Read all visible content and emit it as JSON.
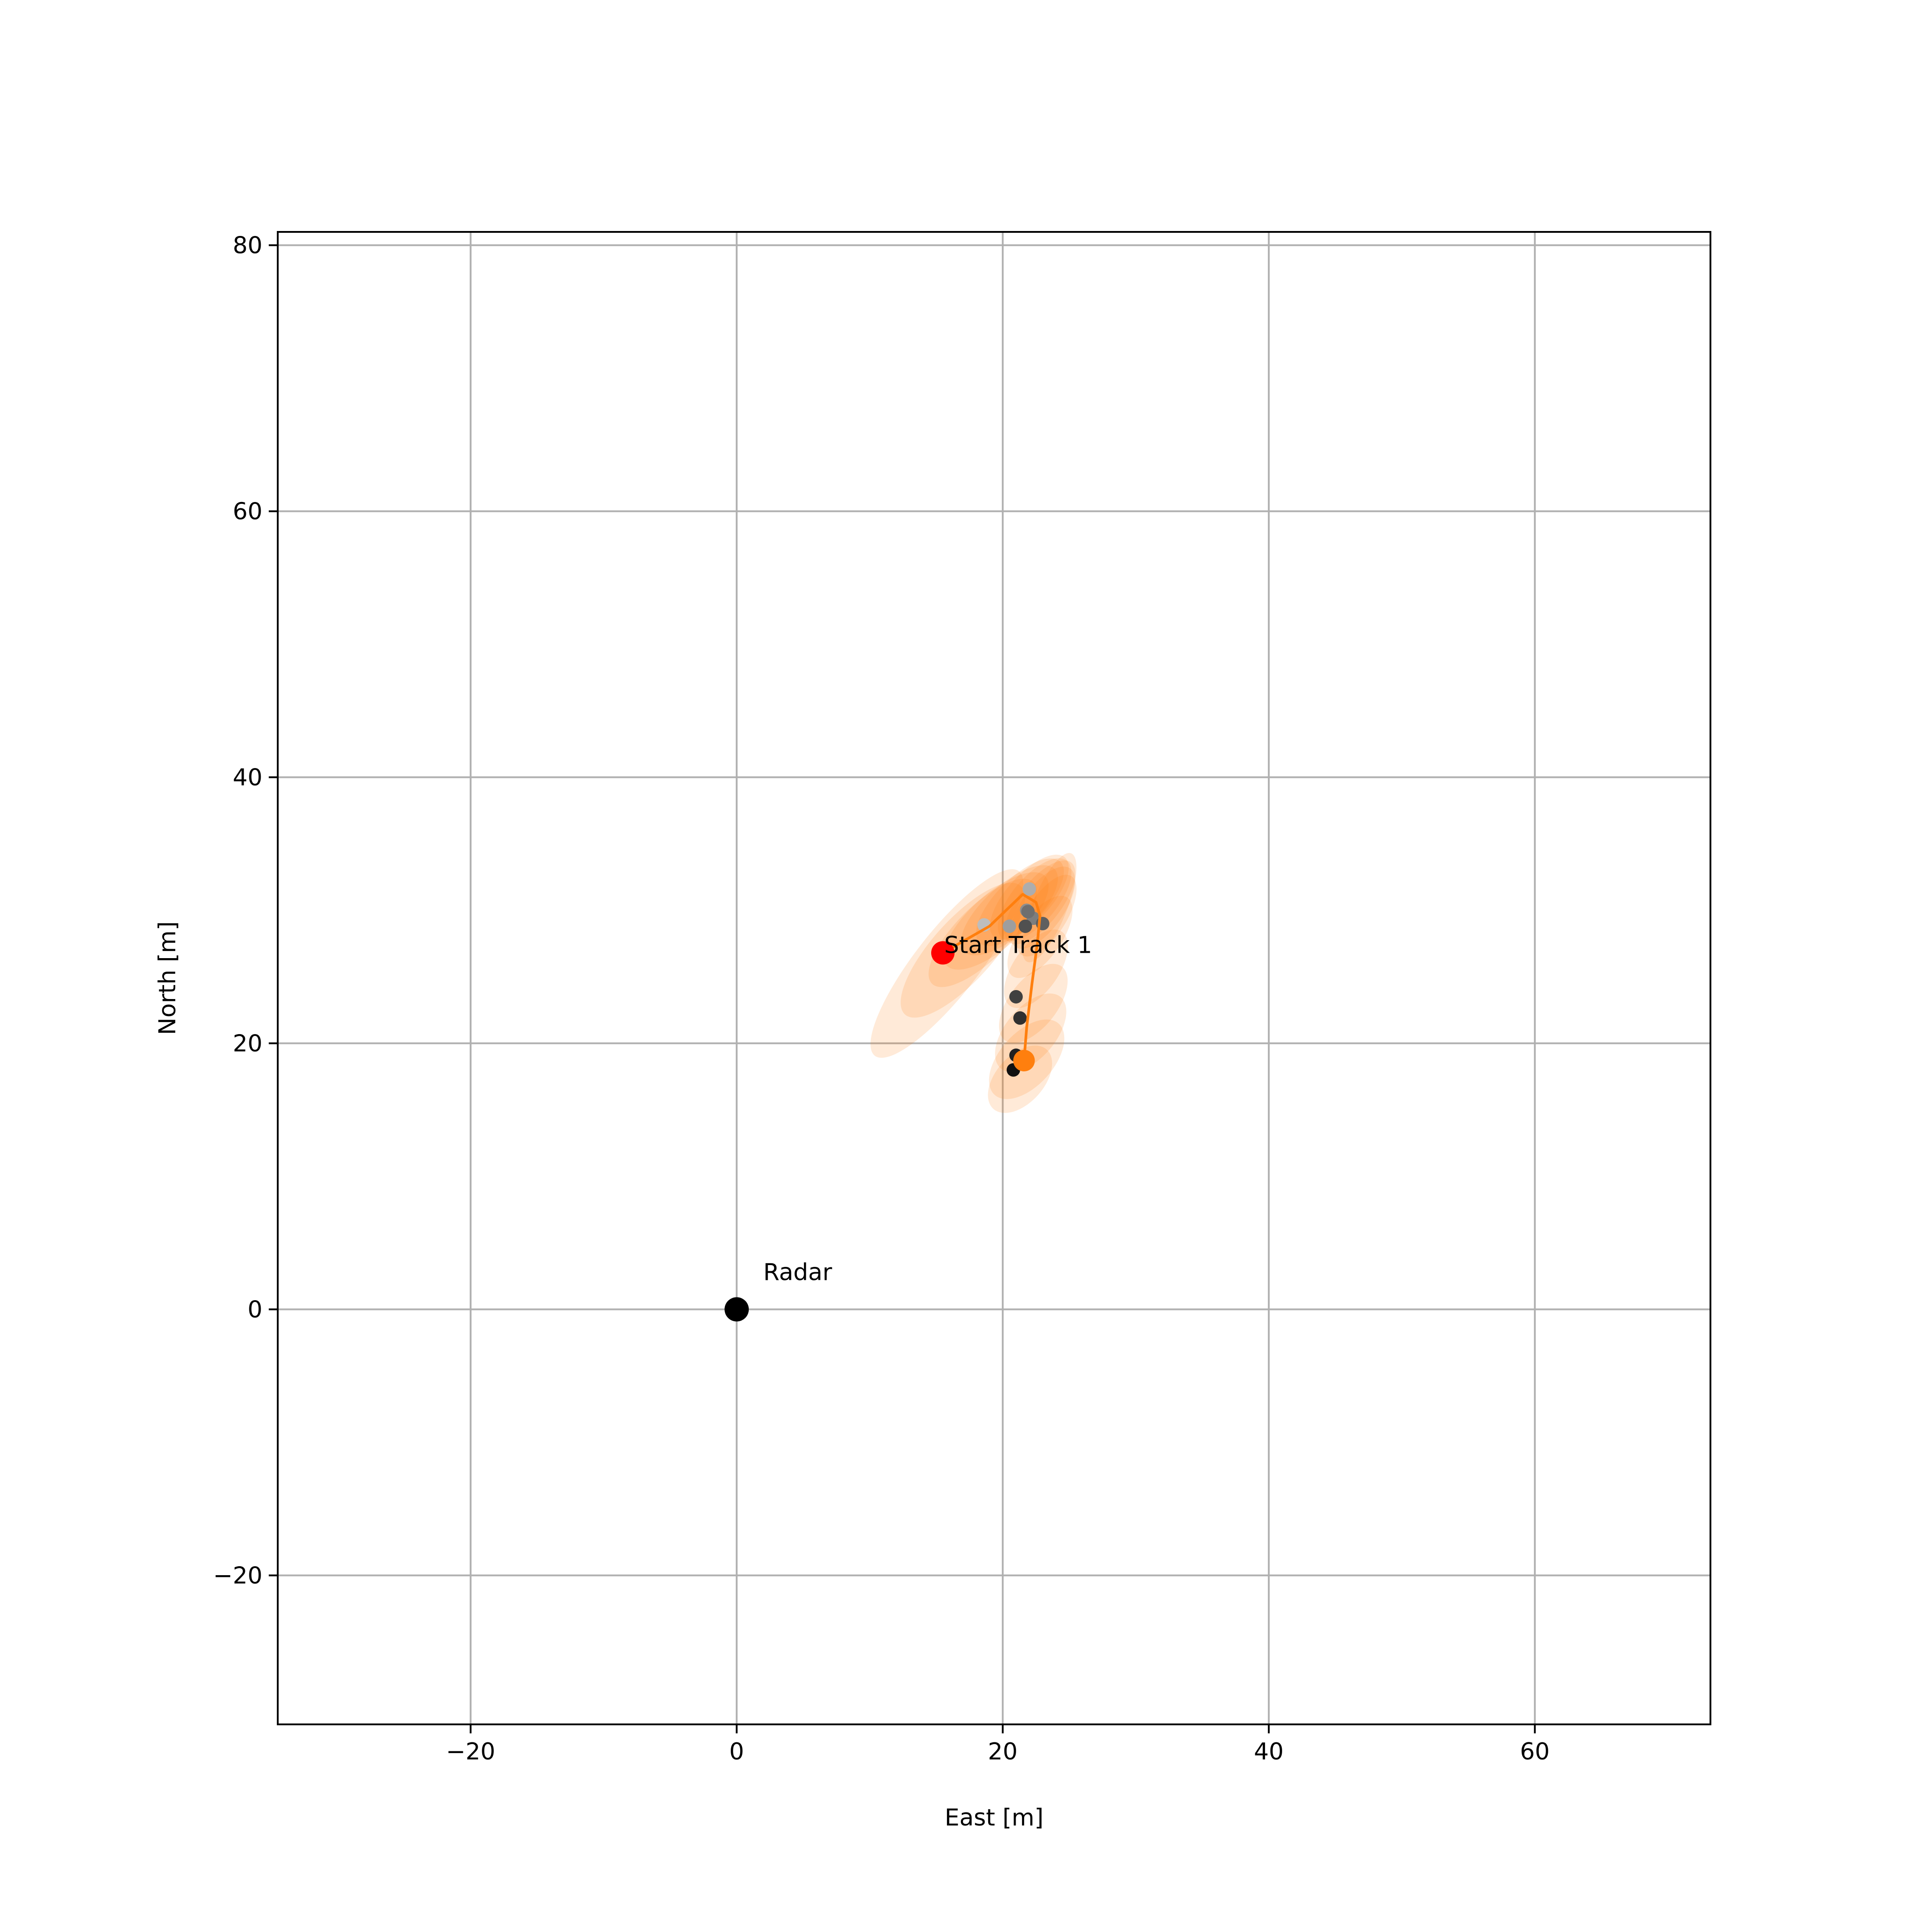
{
  "chart_data": {
    "type": "scatter",
    "xlabel": "East [m]",
    "ylabel": "North [m]",
    "xlim": [
      -34.5,
      73.2
    ],
    "ylim": [
      -31.2,
      81.0
    ],
    "xticks": [
      -20,
      0,
      20,
      40,
      60
    ],
    "yticks": [
      -20,
      0,
      20,
      40,
      60,
      80
    ],
    "xtick_labels": [
      "−20",
      "0",
      "20",
      "40",
      "60"
    ],
    "ytick_labels": [
      "−20",
      "0",
      "20",
      "40",
      "60",
      "80"
    ],
    "grid": true,
    "legend": "none",
    "annotations": [
      {
        "text": "Radar",
        "x": 2.0,
        "y": 2.2
      },
      {
        "text": "Start Track 1",
        "x": 15.6,
        "y": 26.8
      }
    ],
    "radar": {
      "x": 0,
      "y": 0,
      "color": "#000000"
    },
    "track_start": {
      "x": 15.5,
      "y": 26.8,
      "color": "#ff0000"
    },
    "track_end": {
      "x": 21.6,
      "y": 18.7,
      "color": "#ff7f0e"
    },
    "track": {
      "color": "#ff7f0e",
      "points": [
        [
          15.5,
          26.8
        ],
        [
          19.0,
          28.8
        ],
        [
          21.5,
          31.2
        ],
        [
          22.5,
          30.6
        ],
        [
          22.8,
          29.6
        ],
        [
          22.6,
          27.5
        ],
        [
          22.2,
          24.5
        ],
        [
          21.8,
          21.2
        ],
        [
          21.6,
          18.7
        ]
      ]
    },
    "measurements": {
      "color_old": "#bdbdbd",
      "color_new": "#111111",
      "points": [
        [
          18.6,
          28.9
        ],
        [
          22.0,
          31.6
        ],
        [
          20.5,
          28.8
        ],
        [
          21.8,
          30.0
        ],
        [
          22.3,
          29.4
        ],
        [
          21.9,
          29.9
        ],
        [
          23.0,
          29.0
        ],
        [
          21.7,
          28.8
        ],
        [
          21.0,
          23.5
        ],
        [
          21.3,
          21.9
        ],
        [
          21.0,
          19.1
        ],
        [
          20.8,
          18.0
        ]
      ]
    },
    "covariance_ellipses": {
      "color": "#ff7f0e",
      "alpha": 0.16,
      "items": [
        {
          "x": 15.8,
          "y": 26.0,
          "rx": 2.4,
          "ry": 8.8,
          "angle_deg": 38
        },
        {
          "x": 17.0,
          "y": 27.0,
          "rx": 2.3,
          "ry": 6.5,
          "angle_deg": 42
        },
        {
          "x": 18.5,
          "y": 28.3,
          "rx": 2.0,
          "ry": 5.4,
          "angle_deg": 45
        },
        {
          "x": 19.5,
          "y": 29.2,
          "rx": 2.0,
          "ry": 5.0,
          "angle_deg": 48
        },
        {
          "x": 20.5,
          "y": 30.0,
          "rx": 1.9,
          "ry": 4.6,
          "angle_deg": 48
        },
        {
          "x": 21.3,
          "y": 30.6,
          "rx": 1.8,
          "ry": 4.3,
          "angle_deg": 45
        },
        {
          "x": 22.0,
          "y": 31.0,
          "rx": 1.7,
          "ry": 4.0,
          "angle_deg": 42
        },
        {
          "x": 22.4,
          "y": 30.8,
          "rx": 1.7,
          "ry": 3.8,
          "angle_deg": 40
        },
        {
          "x": 22.8,
          "y": 30.6,
          "rx": 1.6,
          "ry": 3.8,
          "angle_deg": 38
        },
        {
          "x": 23.0,
          "y": 30.2,
          "rx": 1.6,
          "ry": 3.6,
          "angle_deg": 35
        },
        {
          "x": 23.3,
          "y": 29.6,
          "rx": 1.5,
          "ry": 3.5,
          "angle_deg": 32
        },
        {
          "x": 23.5,
          "y": 30.2,
          "rx": 1.3,
          "ry": 4.4,
          "angle_deg": 22
        },
        {
          "x": 22.8,
          "y": 28.0,
          "rx": 1.6,
          "ry": 3.6,
          "angle_deg": 35
        },
        {
          "x": 22.5,
          "y": 25.6,
          "rx": 1.7,
          "ry": 3.4,
          "angle_deg": 35
        },
        {
          "x": 22.3,
          "y": 23.0,
          "rx": 1.8,
          "ry": 3.5,
          "angle_deg": 38
        },
        {
          "x": 22.1,
          "y": 20.8,
          "rx": 1.9,
          "ry": 3.5,
          "angle_deg": 40
        },
        {
          "x": 21.8,
          "y": 18.8,
          "rx": 2.0,
          "ry": 3.6,
          "angle_deg": 42
        },
        {
          "x": 21.3,
          "y": 17.3,
          "rx": 1.8,
          "ry": 3.0,
          "angle_deg": 42
        }
      ]
    }
  }
}
